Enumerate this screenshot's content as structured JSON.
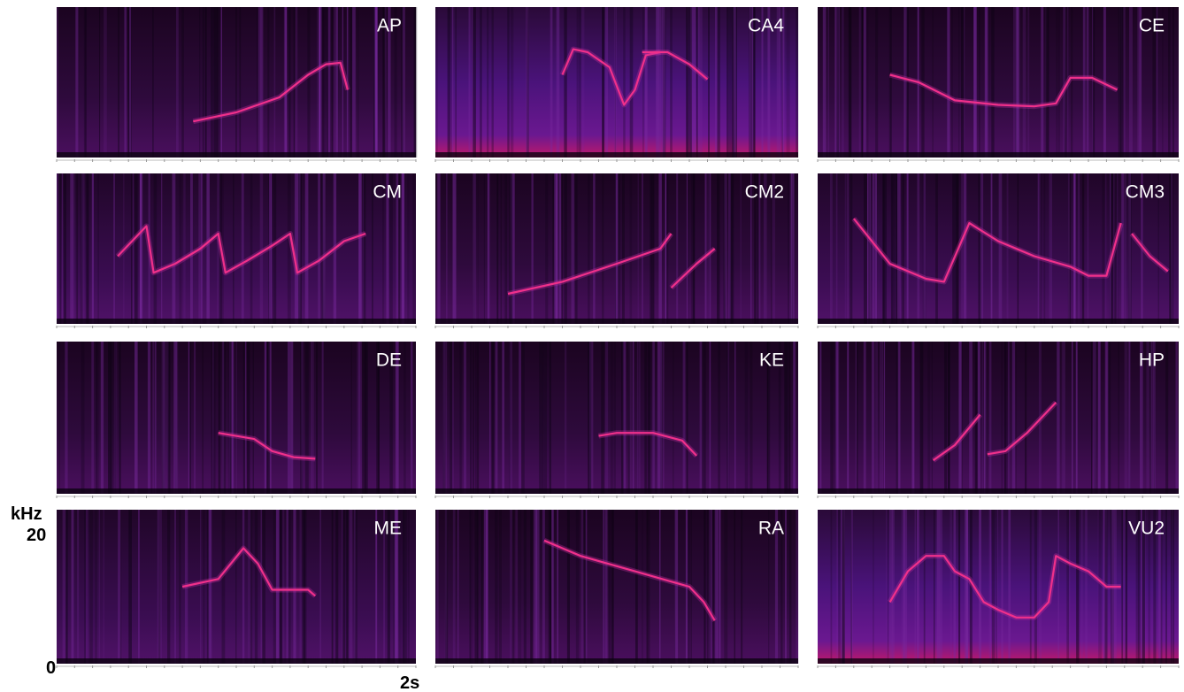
{
  "figure": {
    "y_axis": {
      "unit": "kHz",
      "max": "20",
      "min": "0"
    },
    "x_axis": {
      "scale": "2s"
    },
    "panels": [
      {
        "label": "AP"
      },
      {
        "label": "CA4"
      },
      {
        "label": "CE"
      },
      {
        "label": "CM"
      },
      {
        "label": "CM2"
      },
      {
        "label": "CM3"
      },
      {
        "label": "DE"
      },
      {
        "label": "KE"
      },
      {
        "label": "HP"
      },
      {
        "label": "ME"
      },
      {
        "label": "RA"
      },
      {
        "label": "VU2"
      }
    ]
  }
}
